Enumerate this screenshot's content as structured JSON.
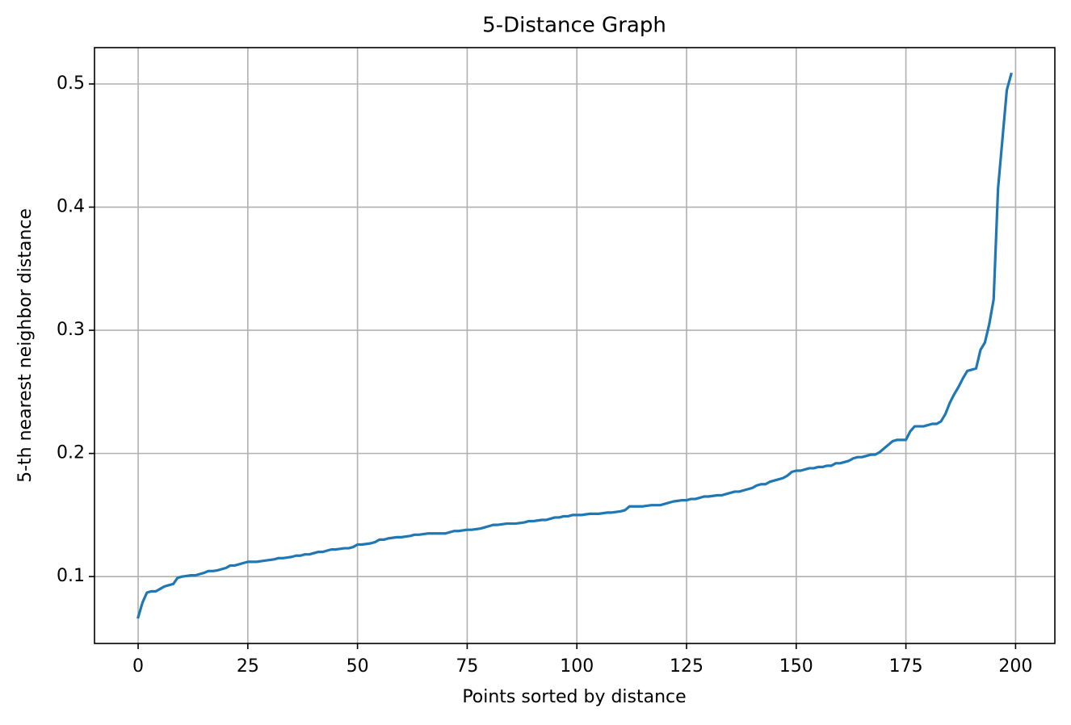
{
  "chart_data": {
    "type": "line",
    "title": "5-Distance Graph",
    "x_label": "Points sorted by distance",
    "y_label": "5-th nearest neighbor distance",
    "color": "#1f77b4",
    "grid": true,
    "xlim": [
      -9.95,
      208.95
    ],
    "xticks": [
      0,
      25,
      50,
      75,
      100,
      125,
      150,
      175,
      200
    ],
    "ylim": [
      0.0457,
      0.5295
    ],
    "yticks": [
      0.1,
      0.2,
      0.3,
      0.4,
      0.5
    ],
    "x": [
      0,
      1,
      2,
      3,
      4,
      5,
      6,
      7,
      8,
      9,
      10,
      11,
      12,
      13,
      14,
      15,
      16,
      17,
      18,
      19,
      20,
      21,
      22,
      23,
      24,
      25,
      26,
      27,
      28,
      29,
      30,
      31,
      32,
      33,
      34,
      35,
      36,
      37,
      38,
      39,
      40,
      41,
      42,
      43,
      44,
      45,
      46,
      47,
      48,
      49,
      50,
      51,
      52,
      53,
      54,
      55,
      56,
      57,
      58,
      59,
      60,
      61,
      62,
      63,
      64,
      65,
      66,
      67,
      68,
      69,
      70,
      71,
      72,
      73,
      74,
      75,
      76,
      77,
      78,
      79,
      80,
      81,
      82,
      83,
      84,
      85,
      86,
      87,
      88,
      89,
      90,
      91,
      92,
      93,
      94,
      95,
      96,
      97,
      98,
      99,
      100,
      101,
      102,
      103,
      104,
      105,
      106,
      107,
      108,
      109,
      110,
      111,
      112,
      113,
      114,
      115,
      116,
      117,
      118,
      119,
      120,
      121,
      122,
      123,
      124,
      125,
      126,
      127,
      128,
      129,
      130,
      131,
      132,
      133,
      134,
      135,
      136,
      137,
      138,
      139,
      140,
      141,
      142,
      143,
      144,
      145,
      146,
      147,
      148,
      149,
      150,
      151,
      152,
      153,
      154,
      155,
      156,
      157,
      158,
      159,
      160,
      161,
      162,
      163,
      164,
      165,
      166,
      167,
      168,
      169,
      170,
      171,
      172,
      173,
      174,
      175,
      176,
      177,
      178,
      179,
      180,
      181,
      182,
      183,
      184,
      185,
      186,
      187,
      188,
      189,
      190,
      191,
      192,
      193,
      194,
      195,
      196,
      197,
      198,
      199
    ],
    "values": [
      0.067,
      0.079,
      0.087,
      0.088,
      0.088,
      0.09,
      0.092,
      0.093,
      0.094,
      0.099,
      0.1,
      0.1005,
      0.101,
      0.101,
      0.102,
      0.103,
      0.1045,
      0.1045,
      0.105,
      0.106,
      0.107,
      0.109,
      0.109,
      0.11,
      0.111,
      0.112,
      0.112,
      0.112,
      0.1125,
      0.113,
      0.1135,
      0.114,
      0.115,
      0.115,
      0.1155,
      0.116,
      0.117,
      0.117,
      0.118,
      0.118,
      0.119,
      0.12,
      0.12,
      0.121,
      0.122,
      0.122,
      0.1225,
      0.123,
      0.123,
      0.124,
      0.126,
      0.126,
      0.1265,
      0.127,
      0.128,
      0.13,
      0.13,
      0.131,
      0.1315,
      0.132,
      0.132,
      0.1325,
      0.133,
      0.134,
      0.134,
      0.1345,
      0.135,
      0.135,
      0.135,
      0.135,
      0.135,
      0.136,
      0.137,
      0.137,
      0.1375,
      0.138,
      0.138,
      0.1385,
      0.139,
      0.14,
      0.141,
      0.142,
      0.142,
      0.1425,
      0.143,
      0.143,
      0.143,
      0.1435,
      0.144,
      0.145,
      0.145,
      0.1455,
      0.146,
      0.146,
      0.147,
      0.148,
      0.148,
      0.149,
      0.149,
      0.15,
      0.15,
      0.15,
      0.1505,
      0.151,
      0.151,
      0.151,
      0.1515,
      0.152,
      0.152,
      0.1525,
      0.153,
      0.154,
      0.157,
      0.157,
      0.157,
      0.157,
      0.1575,
      0.158,
      0.158,
      0.158,
      0.159,
      0.16,
      0.161,
      0.1615,
      0.162,
      0.162,
      0.163,
      0.163,
      0.164,
      0.165,
      0.165,
      0.1655,
      0.166,
      0.166,
      0.167,
      0.168,
      0.169,
      0.169,
      0.17,
      0.171,
      0.172,
      0.174,
      0.175,
      0.175,
      0.177,
      0.178,
      0.179,
      0.18,
      0.182,
      0.185,
      0.186,
      0.186,
      0.187,
      0.188,
      0.188,
      0.189,
      0.189,
      0.19,
      0.19,
      0.192,
      0.192,
      0.193,
      0.194,
      0.196,
      0.197,
      0.197,
      0.198,
      0.199,
      0.199,
      0.201,
      0.204,
      0.207,
      0.21,
      0.211,
      0.211,
      0.211,
      0.218,
      0.222,
      0.222,
      0.222,
      0.223,
      0.224,
      0.224,
      0.226,
      0.232,
      0.241,
      0.248,
      0.254,
      0.261,
      0.267,
      0.268,
      0.269,
      0.284,
      0.29,
      0.305,
      0.325,
      0.415,
      0.455,
      0.495,
      0.508
    ]
  }
}
